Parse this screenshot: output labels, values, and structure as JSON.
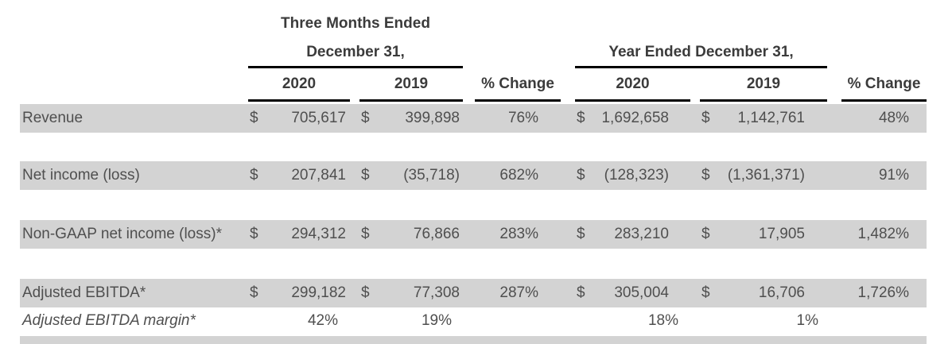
{
  "header": {
    "three_months": {
      "line1": "Three Months Ended",
      "line2": "December 31,"
    },
    "year": {
      "title": "Year Ended December 31,"
    },
    "columns": {
      "tm_2020": "2020",
      "tm_2019": "2019",
      "tm_change": "% Change",
      "yr_2020": "2020",
      "yr_2019": "2019",
      "yr_change": "% Change"
    }
  },
  "rows": [
    {
      "label": "Revenue",
      "tm_2020": {
        "currency": "$",
        "amount": "705,617"
      },
      "tm_2019": {
        "currency": "$",
        "amount": "399,898"
      },
      "tm_change": "76%",
      "yr_2020": {
        "currency": "$",
        "amount": "1,692,658"
      },
      "yr_2019": {
        "currency": "$",
        "amount": "1,142,761"
      },
      "yr_change": "48%"
    },
    {
      "label": "Net income (loss)",
      "tm_2020": {
        "currency": "$",
        "amount": "207,841"
      },
      "tm_2019": {
        "currency": "$",
        "amount": "(35,718)"
      },
      "tm_change": "682%",
      "yr_2020": {
        "currency": "$",
        "amount": "(128,323)"
      },
      "yr_2019": {
        "currency": "$",
        "amount": "(1,361,371)"
      },
      "yr_change": "91%"
    },
    {
      "label": "Non-GAAP net income (loss)*",
      "tm_2020": {
        "currency": "$",
        "amount": "294,312"
      },
      "tm_2019": {
        "currency": "$",
        "amount": "76,866"
      },
      "tm_change": "283%",
      "yr_2020": {
        "currency": "$",
        "amount": "283,210"
      },
      "yr_2019": {
        "currency": "$",
        "amount": "17,905"
      },
      "yr_change": "1,482%"
    },
    {
      "label": "Adjusted EBITDA*",
      "tm_2020": {
        "currency": "$",
        "amount": "299,182"
      },
      "tm_2019": {
        "currency": "$",
        "amount": "77,308"
      },
      "tm_change": "287%",
      "yr_2020": {
        "currency": "$",
        "amount": "305,004"
      },
      "yr_2019": {
        "currency": "$",
        "amount": "16,706"
      },
      "yr_change": "1,726%"
    }
  ],
  "margin_row": {
    "label": "Adjusted EBITDA margin*",
    "tm_2020": "42%",
    "tm_2019": "19%",
    "yr_2020": "18%",
    "yr_2019": "1%"
  },
  "colors": {
    "row_band": "#d3d3d3",
    "header_text": "#3b3b3b",
    "body_text": "#4f4f4f",
    "rule": "#000000",
    "background": "#ffffff"
  }
}
